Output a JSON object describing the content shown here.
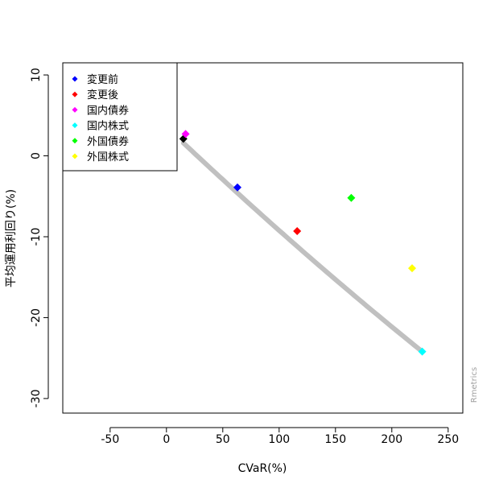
{
  "chart_data": {
    "type": "scatter",
    "xlabel": "CVaR(%)",
    "ylabel": "平均運用利回り(%)",
    "xlim": [
      -92,
      263
    ],
    "ylim": [
      -31.8,
      11.5
    ],
    "xticks": [
      -50,
      0,
      50,
      100,
      150,
      200,
      250
    ],
    "yticks": [
      -30,
      -20,
      -10,
      0,
      10
    ],
    "watermark": "Rmetrics",
    "frontier": {
      "color": "#c0c0c0",
      "start": [
        15,
        1.6
      ],
      "end": [
        227,
        -24.2
      ],
      "mid": [
        121,
        -11.8
      ]
    },
    "series": [
      {
        "name": "変更前",
        "color": "#0000ff",
        "x": 63,
        "y": -3.9
      },
      {
        "name": "変更後",
        "color": "#ff0000",
        "x": 116,
        "y": -9.3
      },
      {
        "name": "国内債券",
        "color": "#ff00ff",
        "x": 17,
        "y": 2.7
      },
      {
        "name": "国内株式",
        "color": "#00ffff",
        "x": 227,
        "y": -24.2
      },
      {
        "name": "外国債券",
        "color": "#00ff00",
        "x": 164,
        "y": -5.2
      },
      {
        "name": "外国株式",
        "color": "#ffff00",
        "x": 218,
        "y": -13.9
      }
    ],
    "extra_point": {
      "color": "#000000",
      "x": 15,
      "y": 2.1
    },
    "legend_position": "top-left"
  }
}
